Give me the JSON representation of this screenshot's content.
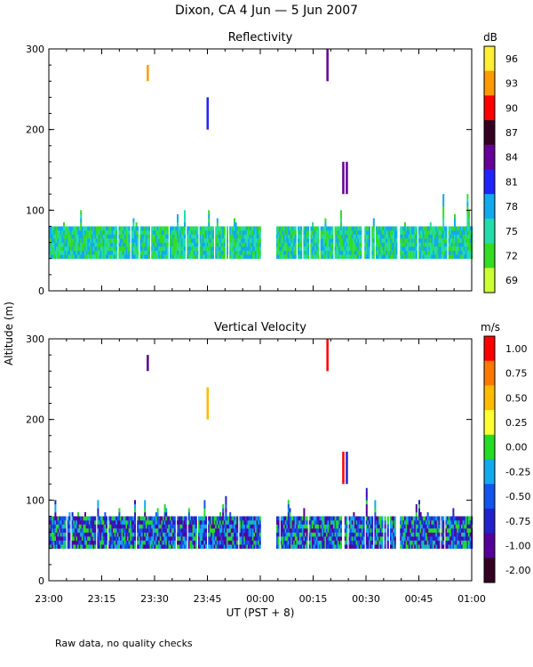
{
  "figure_title": "Dixon, CA  4 Jun —  5 Jun 2007",
  "footnote": "Raw data, no quality checks",
  "ylabel": "Altitude (m)",
  "xlabel": "UT  (PST + 8)",
  "chart_data": [
    {
      "type": "heatmap",
      "title": "Reflectivity",
      "xlabel": "UT  (PST + 8)",
      "ylabel": "Altitude (m)",
      "xlim": [
        0,
        120
      ],
      "ylim": [
        0,
        300
      ],
      "x_ticks": [
        0,
        15,
        30,
        45,
        60,
        75,
        90,
        105,
        120
      ],
      "x_tick_labels": [
        "23:00",
        "23:15",
        "23:30",
        "23:45",
        "00:00",
        "00:15",
        "00:30",
        "00:45",
        "01:00"
      ],
      "y_ticks": [
        0,
        100,
        200,
        300
      ],
      "y_tick_labels": [
        "0",
        "100",
        "200",
        "300"
      ],
      "colorbar": {
        "unit": "dB",
        "labels": [
          "96",
          "93",
          "90",
          "87",
          "84",
          "81",
          "78",
          "75",
          "72",
          "69"
        ],
        "colors": [
          "#ffee33",
          "#ff9900",
          "#ff0000",
          "#330022",
          "#660099",
          "#2222ff",
          "#11aaee",
          "#22ddaa",
          "#33dd22",
          "#ccff33"
        ]
      },
      "gaps": [
        [
          60,
          64.5
        ],
        [
          98.8,
          99.6
        ]
      ],
      "main_band": {
        "altitude": [
          40,
          80
        ],
        "value_range": [
          72,
          81
        ]
      },
      "isolated_echoes": [
        {
          "time": 28,
          "altitude": [
            260,
            280
          ],
          "value": 93
        },
        {
          "time": 45,
          "altitude": [
            200,
            240
          ],
          "value": 82
        },
        {
          "time": 79,
          "altitude": [
            260,
            300
          ],
          "value": 85
        },
        {
          "time": 83.5,
          "altitude": [
            120,
            160
          ],
          "value": 86
        },
        {
          "time": 84.5,
          "altitude": [
            120,
            160
          ],
          "value": 85
        }
      ]
    },
    {
      "type": "heatmap",
      "title": "Vertical Velocity",
      "xlabel": "UT  (PST + 8)",
      "ylabel": "Altitude (m)",
      "xlim": [
        0,
        120
      ],
      "ylim": [
        0,
        300
      ],
      "x_ticks": [
        0,
        15,
        30,
        45,
        60,
        75,
        90,
        105,
        120
      ],
      "x_tick_labels": [
        "23:00",
        "23:15",
        "23:30",
        "23:45",
        "00:00",
        "00:15",
        "00:30",
        "00:45",
        "01:00"
      ],
      "y_ticks": [
        0,
        100,
        200,
        300
      ],
      "y_tick_labels": [
        "0",
        "100",
        "200",
        "300"
      ],
      "colorbar": {
        "unit": "m/s",
        "labels": [
          "1.00",
          "0.75",
          "0.50",
          "0.25",
          "0.00",
          "-0.25",
          "-0.50",
          "-0.75",
          "-1.00",
          "-2.00"
        ],
        "colors": [
          "#ff0000",
          "#ff7700",
          "#ffbb00",
          "#ffff33",
          "#22dd22",
          "#11aaee",
          "#1155ee",
          "#2222cc",
          "#550099",
          "#330022"
        ]
      },
      "gaps": [
        [
          60,
          64.5
        ],
        [
          98.8,
          99.6
        ]
      ],
      "main_band": {
        "altitude": [
          40,
          80
        ],
        "value_range": [
          -1.0,
          0.25
        ]
      },
      "isolated_echoes": [
        {
          "time": 28,
          "altitude": [
            260,
            280
          ],
          "value": -0.8
        },
        {
          "time": 45,
          "altitude": [
            200,
            240
          ],
          "value": 0.5
        },
        {
          "time": 79,
          "altitude": [
            260,
            300
          ],
          "value": 1.0
        },
        {
          "time": 83.5,
          "altitude": [
            120,
            160
          ],
          "value": 1.0
        },
        {
          "time": 84.5,
          "altitude": [
            120,
            160
          ],
          "value": -0.6
        }
      ]
    }
  ]
}
